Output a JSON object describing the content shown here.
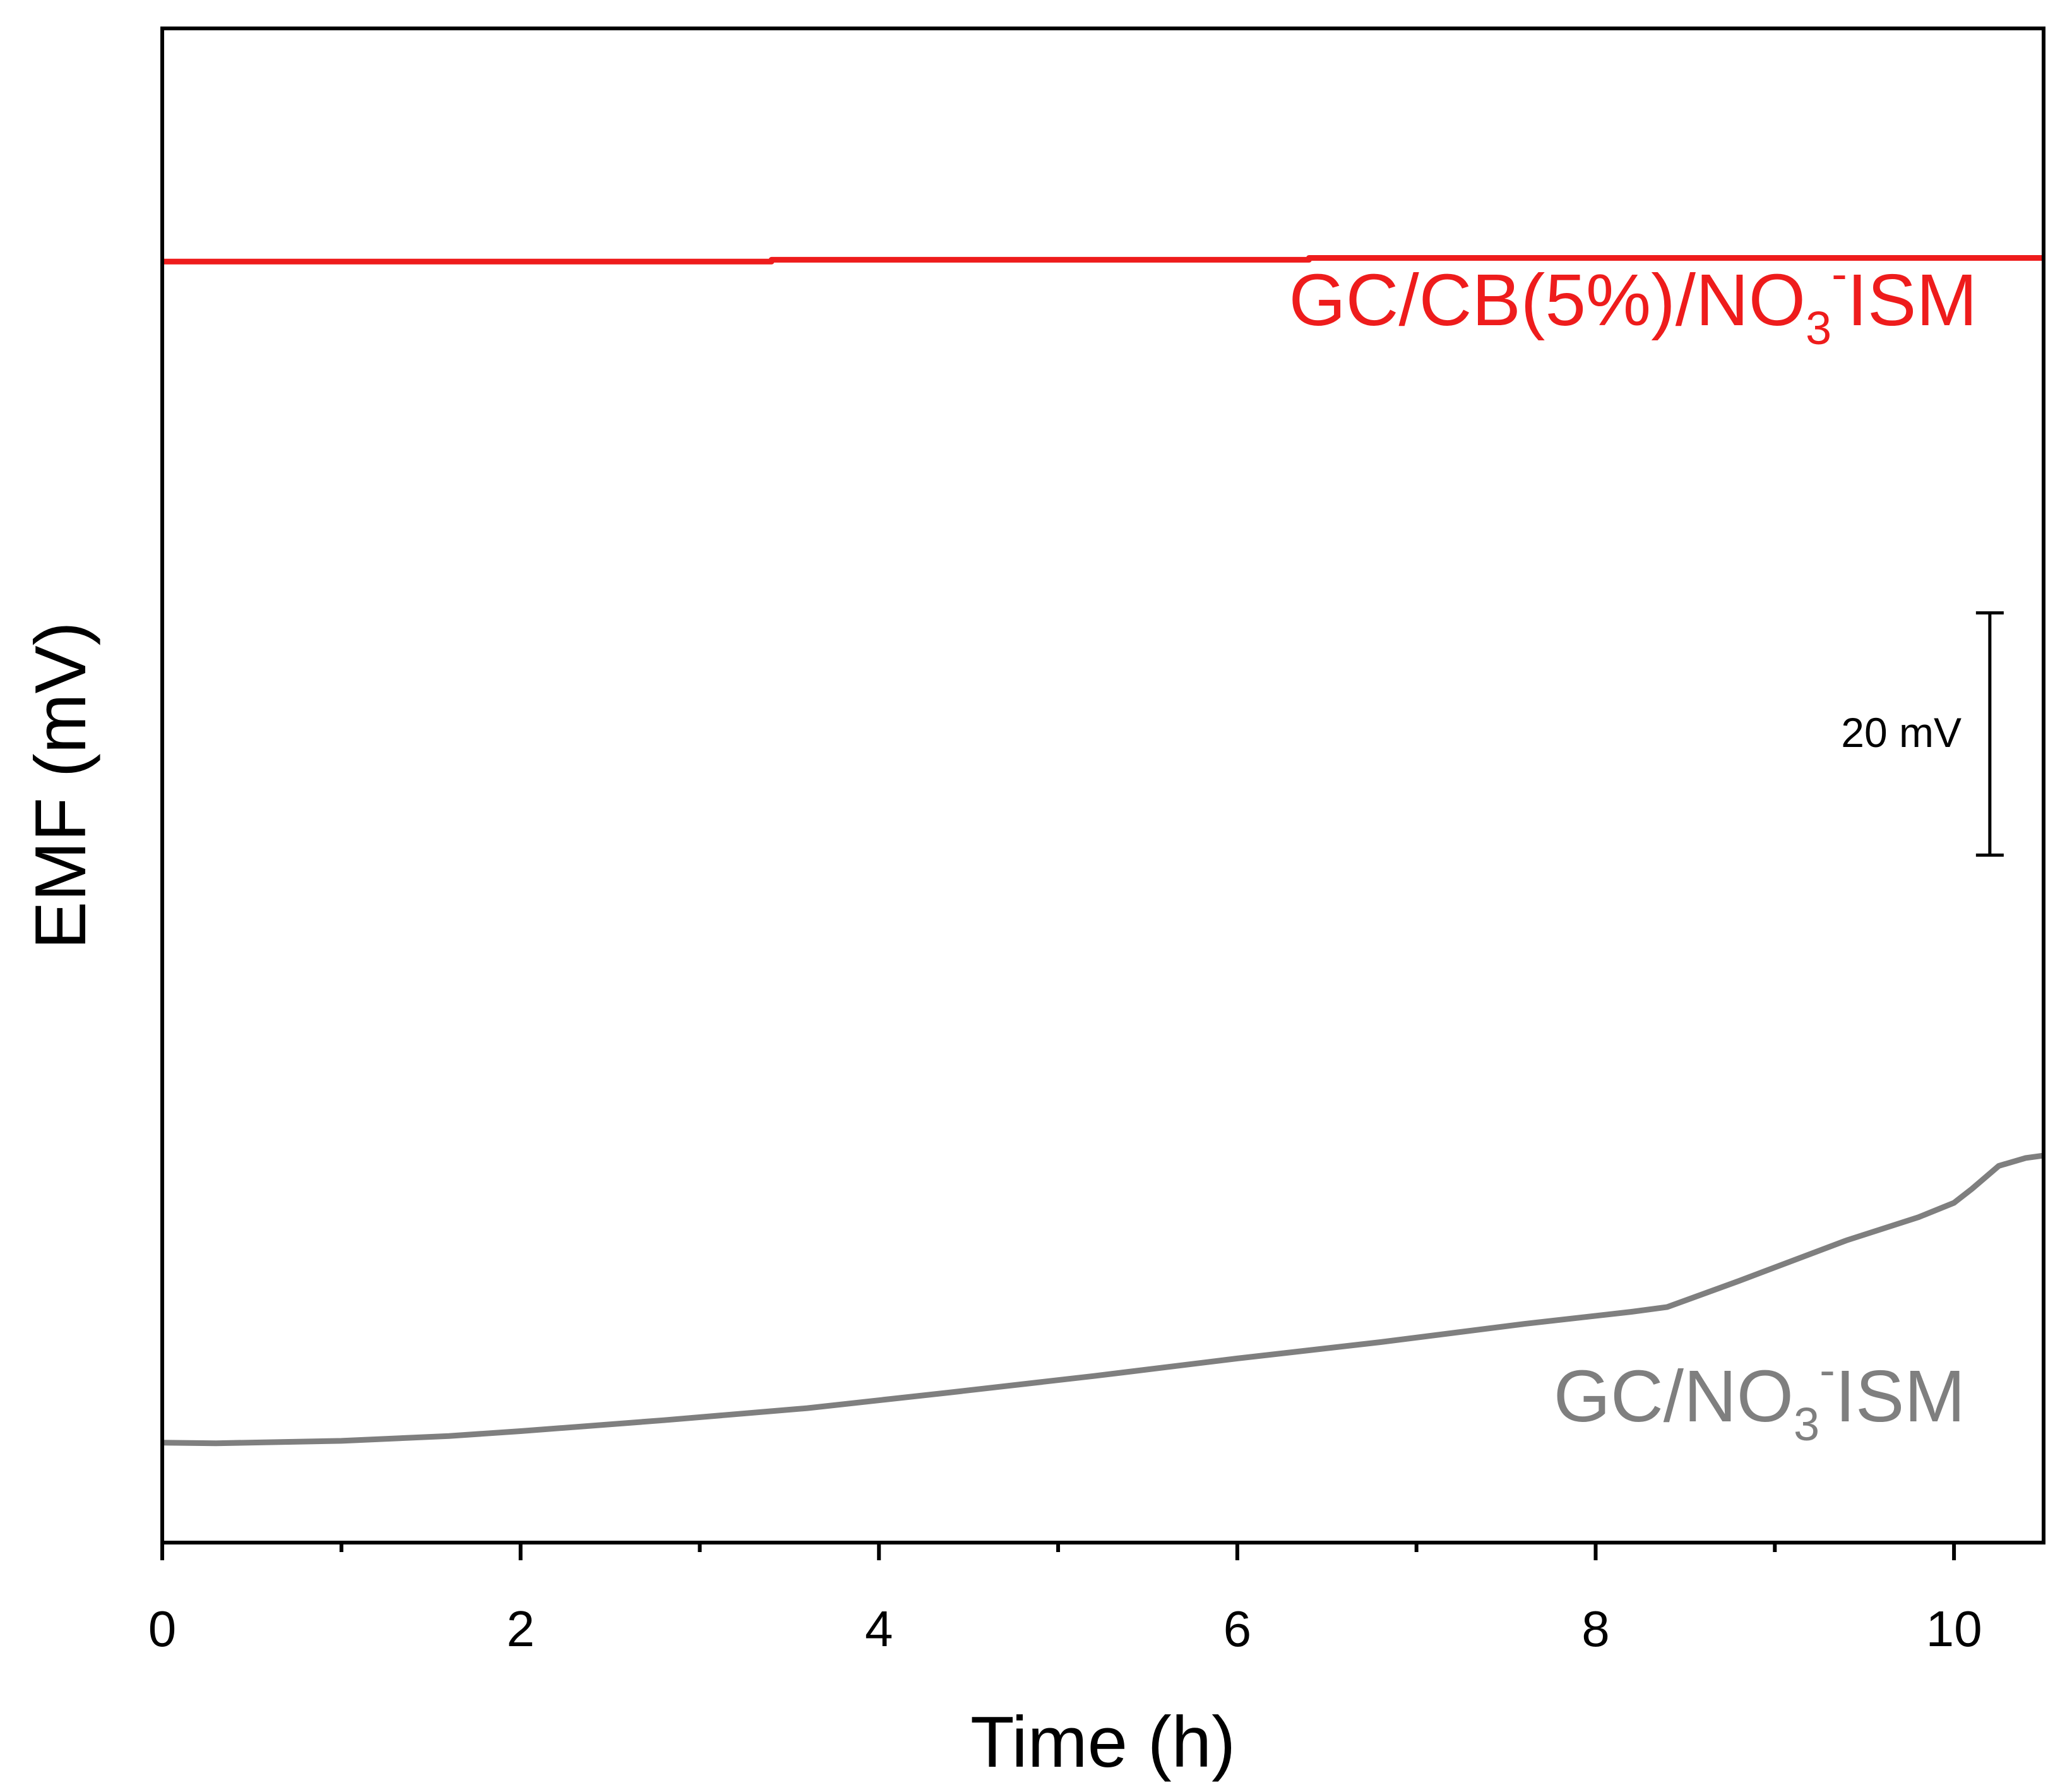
{
  "chart_data": {
    "type": "line",
    "title": "",
    "xlabel": "Time (h)",
    "ylabel": "EMF (mV)",
    "xlim": [
      0,
      10.5
    ],
    "ylim": [
      0,
      250
    ],
    "x_major_ticks": [
      0,
      2,
      4,
      6,
      8,
      10
    ],
    "x_tick_labels": [
      "0",
      "2",
      "4",
      "6",
      "8",
      "10"
    ],
    "x_minor_ticks": [
      1,
      3,
      5,
      7,
      9
    ],
    "y_tick_labels_shown": false,
    "grid": false,
    "scale_bar": {
      "label": "20 mV",
      "value": 20,
      "x": 10.2,
      "y_from": 113.5,
      "y_to": 153.5
    },
    "series": [
      {
        "label": {
          "main": "GC/CB(5%)/NO",
          "sub": "3",
          "sup": "-",
          "tail": "ISM"
        },
        "color": "#ee1c1c",
        "points": [
          [
            0,
            211.5
          ],
          [
            3.4,
            211.5
          ],
          [
            3.4,
            211.8
          ],
          [
            6.4,
            211.8
          ],
          [
            6.4,
            212.1
          ],
          [
            10.5,
            212.1
          ]
        ]
      },
      {
        "label": {
          "main": "GC/NO",
          "sub": "3",
          "sup": "-",
          "tail": "ISM"
        },
        "color": "#7f7f7f",
        "points": [
          [
            0,
            16.5
          ],
          [
            0.3,
            16.4
          ],
          [
            1,
            16.8
          ],
          [
            1.6,
            17.6
          ],
          [
            2.0,
            18.4
          ],
          [
            2.8,
            20.2
          ],
          [
            3.6,
            22.2
          ],
          [
            4.4,
            24.8
          ],
          [
            5.2,
            27.5
          ],
          [
            6.0,
            30.4
          ],
          [
            6.8,
            33.1
          ],
          [
            7.6,
            36.1
          ],
          [
            8.2,
            38.1
          ],
          [
            8.4,
            38.9
          ],
          [
            8.8,
            43.2
          ],
          [
            9.4,
            49.9
          ],
          [
            9.8,
            53.7
          ],
          [
            10.0,
            56.1
          ],
          [
            10.1,
            58.4
          ],
          [
            10.25,
            62.2
          ],
          [
            10.4,
            63.5
          ],
          [
            10.5,
            63.9
          ]
        ]
      }
    ]
  }
}
